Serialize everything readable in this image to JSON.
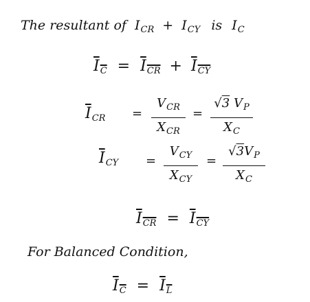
{
  "lines": {
    "intro": {
      "text_a": "The resultant of",
      "i_cr": "I",
      "i_cr_sub": "CR",
      "plus": "+",
      "i_cy": "I",
      "i_cy_sub": "CY",
      "is": "is",
      "i_c": "I",
      "i_c_sub": "C"
    },
    "eq1": {
      "lhs": "I",
      "lhs_sub": "C",
      "eq": "=",
      "t1": "I",
      "t1_sub": "CR",
      "plus": "+",
      "t2": "I",
      "t2_sub": "CY"
    },
    "eq2": {
      "lhs": "I",
      "lhs_sub": "CR",
      "eq1": "=",
      "num1": "V",
      "num1_sub": "CR",
      "den1": "X",
      "den1_sub": "CR",
      "eq2": "=",
      "num2_root": "√",
      "num2_root_arg": "3",
      "num2": "V",
      "num2_sub": "P",
      "den2": "X",
      "den2_sub": "C"
    },
    "eq3": {
      "lhs": "I",
      "lhs_sub": "CY",
      "eq1": "=",
      "num1": "V",
      "num1_sub": "CY",
      "den1": "X",
      "den1_sub": "CY",
      "eq2": "=",
      "num2_root": "√",
      "num2_root_arg": "3",
      "num2": "V",
      "num2_sub": "P",
      "den2": "X",
      "den2_sub": "C"
    },
    "eq4": {
      "lhs": "I",
      "lhs_sub": "CR",
      "eq": "=",
      "rhs": "I",
      "rhs_sub": "CY"
    },
    "condition": {
      "text": "For Balanced Condition,"
    },
    "eq5": {
      "lhs": "I",
      "lhs_sub": "C",
      "eq": "=",
      "rhs": "I",
      "rhs_sub": "L"
    }
  }
}
